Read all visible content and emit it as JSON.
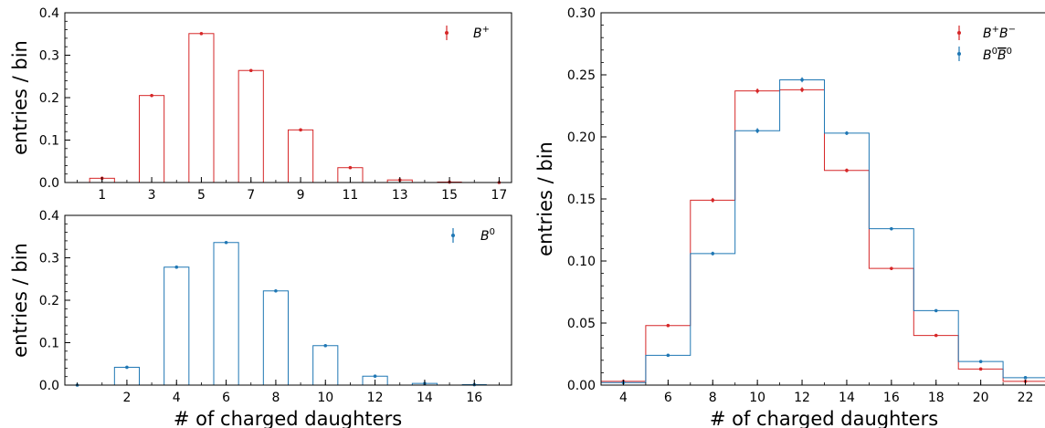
{
  "colors": {
    "red": "#d62728",
    "blue": "#1f77b4"
  },
  "chart_data": [
    {
      "id": "bplus",
      "type": "bar",
      "title": "",
      "xlabel": "",
      "ylabel": "entries / bin",
      "xlim": [
        -0.5,
        17.5
      ],
      "ylim": [
        0,
        0.4
      ],
      "xticks": [
        "1",
        "3",
        "5",
        "7",
        "9",
        "11",
        "13",
        "15",
        "17"
      ],
      "yticks": [
        "0.0",
        "0.1",
        "0.2",
        "0.3",
        "0.4"
      ],
      "grid": false,
      "legend_position": "top-right",
      "series": [
        {
          "name": "B+",
          "color": "red",
          "style": "bars-with-error",
          "x": [
            1,
            3,
            5,
            7,
            9,
            11,
            13,
            15,
            17
          ],
          "values": [
            0.01,
            0.205,
            0.351,
            0.264,
            0.124,
            0.035,
            0.006,
            0.001,
            0.0
          ],
          "errors": [
            0.003,
            0.002,
            0.002,
            0.002,
            0.002,
            0.001,
            0.001,
            0.0005,
            0.0003
          ]
        }
      ]
    },
    {
      "id": "bzero",
      "type": "bar",
      "title": "",
      "xlabel": "# of charged daughters",
      "ylabel": "entries / bin",
      "xlim": [
        -0.5,
        17.5
      ],
      "ylim": [
        0,
        0.4
      ],
      "xticks": [
        "2",
        "4",
        "6",
        "8",
        "10",
        "12",
        "14",
        "16"
      ],
      "yticks": [
        "0.0",
        "0.1",
        "0.2",
        "0.3",
        "0.4"
      ],
      "grid": false,
      "legend_position": "top-right",
      "series": [
        {
          "name": "B0",
          "color": "blue",
          "style": "bars-with-error",
          "x": [
            0,
            2,
            4,
            6,
            8,
            10,
            12,
            14,
            16
          ],
          "values": [
            0.0,
            0.042,
            0.278,
            0.336,
            0.222,
            0.093,
            0.021,
            0.004,
            0.001
          ],
          "errors": [
            0.0003,
            0.001,
            0.002,
            0.002,
            0.002,
            0.001,
            0.001,
            0.0005,
            0.0003
          ]
        }
      ]
    },
    {
      "id": "combined",
      "type": "bar",
      "title": "",
      "xlabel": "# of charged daughters",
      "ylabel": "entries / bin",
      "xlim": [
        3,
        23
      ],
      "ylim": [
        0,
        0.3
      ],
      "xticks": [
        "4",
        "6",
        "8",
        "10",
        "12",
        "14",
        "16",
        "18",
        "20",
        "22"
      ],
      "yticks": [
        "0.00",
        "0.05",
        "0.10",
        "0.15",
        "0.20",
        "0.25",
        "0.30"
      ],
      "grid": false,
      "legend_position": "top-right",
      "categories": [
        "3-5",
        "5-7",
        "7-9",
        "9-11",
        "11-13",
        "13-15",
        "15-17",
        "17-19",
        "19-21",
        "21-23"
      ],
      "series": [
        {
          "name": "B+B−",
          "color": "red",
          "style": "step-with-error",
          "edges": [
            3,
            5,
            7,
            9,
            11,
            13,
            15,
            17,
            19,
            21,
            23
          ],
          "values": [
            0.003,
            0.048,
            0.149,
            0.237,
            0.238,
            0.173,
            0.094,
            0.04,
            0.013,
            0.003
          ],
          "errors": [
            0.0008,
            0.001,
            0.0018,
            0.002,
            0.002,
            0.0015,
            0.0012,
            0.001,
            0.0008,
            0.0005
          ]
        },
        {
          "name": "B0B̄0",
          "color": "blue",
          "style": "step-with-error",
          "edges": [
            3,
            5,
            7,
            9,
            11,
            13,
            15,
            17,
            19,
            21,
            23
          ],
          "values": [
            0.002,
            0.024,
            0.106,
            0.205,
            0.246,
            0.203,
            0.126,
            0.06,
            0.019,
            0.006
          ],
          "errors": [
            0.0008,
            0.001,
            0.0015,
            0.002,
            0.002,
            0.0015,
            0.0012,
            0.001,
            0.0008,
            0.0005
          ]
        }
      ]
    }
  ]
}
